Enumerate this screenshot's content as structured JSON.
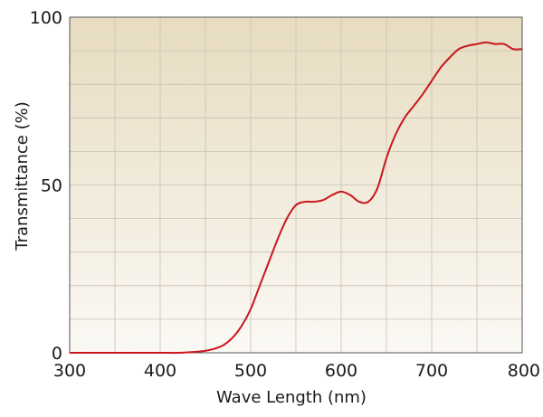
{
  "chart_data": {
    "type": "line",
    "title": "",
    "xlabel": "Wave Length (nm)",
    "ylabel": "Transmittance (%)",
    "xlim": [
      300,
      800
    ],
    "ylim": [
      0,
      100
    ],
    "x_ticks": [
      300,
      400,
      500,
      600,
      700,
      800
    ],
    "y_ticks": [
      0,
      50,
      100
    ],
    "grid": "on",
    "legend": "none",
    "colors": {
      "line": "#c8161d",
      "background_top": "#e7dcc0",
      "background_bottom": "#fbf9f5",
      "grid": "#c9c0b4",
      "axis": "#555555"
    },
    "series": [
      {
        "x": [
          300,
          350,
          400,
          420,
          440,
          450,
          460,
          470,
          480,
          490,
          500,
          510,
          520,
          530,
          540,
          550,
          560,
          570,
          580,
          590,
          600,
          610,
          620,
          630,
          640,
          650,
          660,
          670,
          680,
          690,
          700,
          710,
          720,
          730,
          740,
          750,
          760,
          770,
          780,
          790,
          800
        ],
        "y": [
          0,
          0,
          0,
          0,
          0.3,
          0.6,
          1.2,
          2.3,
          4.5,
          8,
          13,
          20,
          27,
          34,
          40,
          44,
          45,
          45,
          45.5,
          47,
          48,
          47,
          45,
          45,
          49,
          58,
          65,
          70,
          73.5,
          77,
          81,
          85,
          88,
          90.5,
          91.5,
          92,
          92.5,
          92,
          92,
          90.5,
          90.5
        ]
      }
    ]
  }
}
